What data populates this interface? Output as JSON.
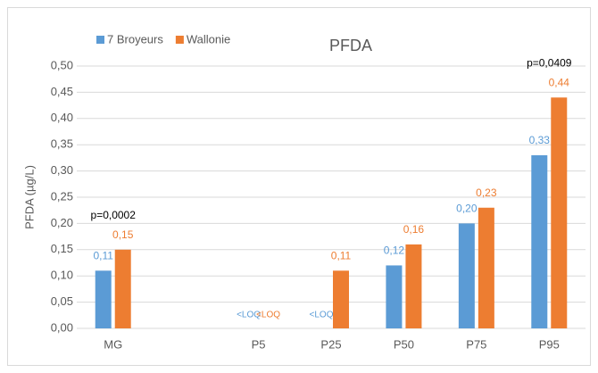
{
  "chart_data": {
    "type": "bar",
    "title": "PFDA",
    "ylabel": "PFDA  (µg/L)",
    "categories": [
      "MG",
      null,
      "P5",
      "P25",
      "P50",
      "P75",
      "P95"
    ],
    "series": [
      {
        "name": "7 Broyeurs",
        "color": "#5b9bd5",
        "values": [
          0.11,
          null,
          null,
          null,
          0.12,
          0.2,
          0.33
        ],
        "value_labels": [
          "0,11",
          null,
          "<LOQ",
          "<LOQ",
          "0,12",
          "0,20",
          "0,33"
        ]
      },
      {
        "name": "Wallonie",
        "color": "#ed7d31",
        "values": [
          0.15,
          null,
          null,
          0.11,
          0.16,
          0.23,
          0.44
        ],
        "value_labels": [
          "0,15",
          null,
          "<LOQ",
          "0,11",
          "0,16",
          "0,23",
          "0,44"
        ]
      }
    ],
    "annotations": [
      {
        "text": "p=0,0002",
        "x": "MG"
      },
      {
        "text": "p=0,0409",
        "x": "P95"
      }
    ],
    "ylim": [
      0,
      0.5
    ],
    "yticks": [
      {
        "value": 0,
        "label": "0,00"
      },
      {
        "value": 0.05,
        "label": "0,05"
      },
      {
        "value": 0.1,
        "label": "0,10"
      },
      {
        "value": 0.15,
        "label": "0,15"
      },
      {
        "value": 0.2,
        "label": "0,20"
      },
      {
        "value": 0.25,
        "label": "0,25"
      },
      {
        "value": 0.3,
        "label": "0,30"
      },
      {
        "value": 0.35,
        "label": "0,35"
      },
      {
        "value": 0.4,
        "label": "0,40"
      },
      {
        "value": 0.45,
        "label": "0,45"
      },
      {
        "value": 0.5,
        "label": "0,50"
      }
    ],
    "grid": true,
    "legend": "top-left"
  }
}
